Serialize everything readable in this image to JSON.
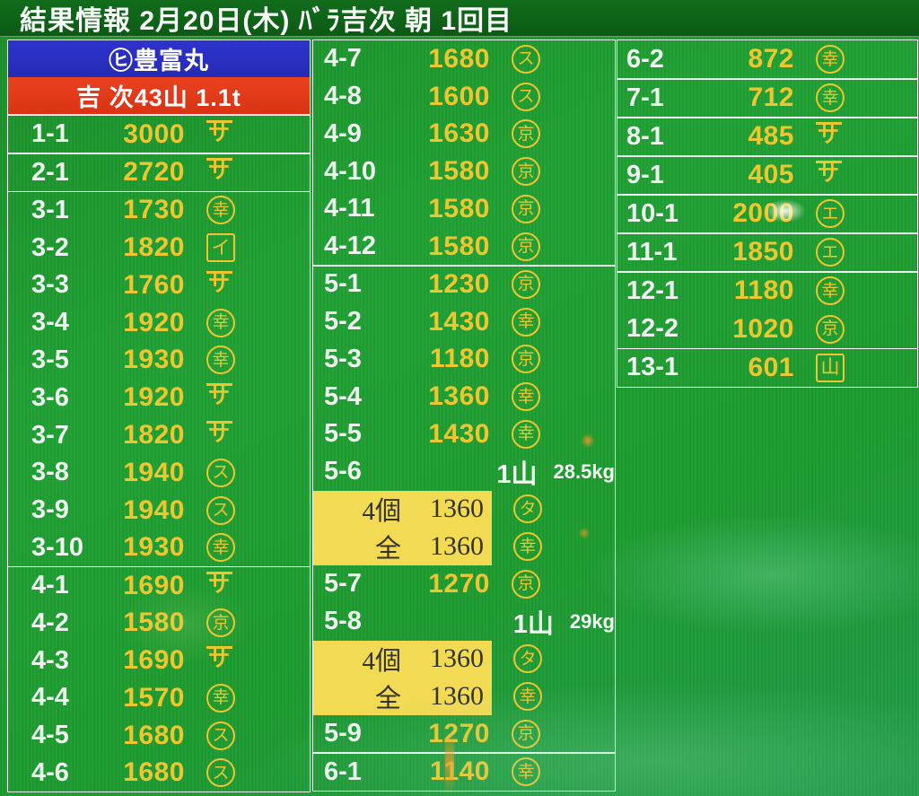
{
  "header": {
    "title": "結果情報  2月20日(木)  ﾊﾞﾗ吉次  朝  1回目"
  },
  "marks": {
    "sa": {
      "char": "サ",
      "shape": "overline",
      "label": "overlined-sa"
    },
    "kou": {
      "char": "幸",
      "shape": "circle",
      "label": "circled-kou"
    },
    "i": {
      "char": "イ",
      "shape": "square",
      "label": "squared-i"
    },
    "su": {
      "char": "ス",
      "shape": "circle",
      "label": "circled-su"
    },
    "kyo": {
      "char": "京",
      "shape": "circle",
      "label": "circled-kyo"
    },
    "e": {
      "char": "エ",
      "shape": "circle",
      "label": "circled-e"
    },
    "ta": {
      "char": "タ",
      "shape": "circle",
      "label": "circled-ta"
    },
    "yama": {
      "char": "山",
      "shape": "square",
      "label": "squared-yama"
    }
  },
  "left_column": {
    "boat_banner": "㋪豊富丸",
    "lot_banner": "吉 次43山 1.1t",
    "groups": [
      {
        "rows": [
          {
            "lot": "1-1",
            "price": "3000",
            "mark": "sa"
          }
        ]
      },
      {
        "rows": [
          {
            "lot": "2-1",
            "price": "2720",
            "mark": "sa"
          }
        ]
      },
      {
        "rows": [
          {
            "lot": "3-1",
            "price": "1730",
            "mark": "kou"
          },
          {
            "lot": "3-2",
            "price": "1820",
            "mark": "i"
          },
          {
            "lot": "3-3",
            "price": "1760",
            "mark": "sa"
          },
          {
            "lot": "3-4",
            "price": "1920",
            "mark": "kou"
          },
          {
            "lot": "3-5",
            "price": "1930",
            "mark": "kou"
          },
          {
            "lot": "3-6",
            "price": "1920",
            "mark": "sa"
          },
          {
            "lot": "3-7",
            "price": "1820",
            "mark": "sa"
          },
          {
            "lot": "3-8",
            "price": "1940",
            "mark": "su"
          },
          {
            "lot": "3-9",
            "price": "1940",
            "mark": "su"
          },
          {
            "lot": "3-10",
            "price": "1930",
            "mark": "kou"
          }
        ]
      },
      {
        "rows": [
          {
            "lot": "4-1",
            "price": "1690",
            "mark": "sa"
          },
          {
            "lot": "4-2",
            "price": "1580",
            "mark": "kyo"
          },
          {
            "lot": "4-3",
            "price": "1690",
            "mark": "sa"
          },
          {
            "lot": "4-4",
            "price": "1570",
            "mark": "kou"
          },
          {
            "lot": "4-5",
            "price": "1680",
            "mark": "su"
          },
          {
            "lot": "4-6",
            "price": "1680",
            "mark": "su"
          }
        ]
      }
    ]
  },
  "middle_column": {
    "groups": [
      {
        "rows": [
          {
            "lot": "4-7",
            "price": "1680",
            "mark": "su"
          },
          {
            "lot": "4-8",
            "price": "1600",
            "mark": "su"
          },
          {
            "lot": "4-9",
            "price": "1630",
            "mark": "kyo"
          },
          {
            "lot": "4-10",
            "price": "1580",
            "mark": "kyo"
          },
          {
            "lot": "4-11",
            "price": "1580",
            "mark": "kyo"
          },
          {
            "lot": "4-12",
            "price": "1580",
            "mark": "kyo"
          }
        ]
      },
      {
        "rows": [
          {
            "lot": "5-1",
            "price": "1230",
            "mark": "kyo"
          },
          {
            "lot": "5-2",
            "price": "1430",
            "mark": "kou"
          },
          {
            "lot": "5-3",
            "price": "1180",
            "mark": "kyo"
          },
          {
            "lot": "5-4",
            "price": "1360",
            "mark": "kou"
          },
          {
            "lot": "5-5",
            "price": "1430",
            "mark": "kou"
          },
          {
            "lot": "5-6",
            "type": "note",
            "note": "1山",
            "weight": "28.5kg"
          },
          {
            "type": "highlight",
            "label": "4個",
            "price": "1360",
            "mark": "ta"
          },
          {
            "type": "highlight",
            "label": "全",
            "price": "1360",
            "mark": "kou"
          },
          {
            "lot": "5-7",
            "price": "1270",
            "mark": "kyo"
          },
          {
            "lot": "5-8",
            "type": "note",
            "note": "1山",
            "weight": "29kg"
          },
          {
            "type": "highlight",
            "label": "4個",
            "price": "1360",
            "mark": "ta"
          },
          {
            "type": "highlight",
            "label": "全",
            "price": "1360",
            "mark": "kou"
          },
          {
            "lot": "5-9",
            "price": "1270",
            "mark": "kyo"
          }
        ]
      },
      {
        "rows": [
          {
            "lot": "6-1",
            "price": "1140",
            "mark": "kou"
          }
        ]
      }
    ]
  },
  "right_column": {
    "groups": [
      {
        "rows": [
          {
            "lot": "6-2",
            "price": "872",
            "mark": "kou"
          }
        ]
      },
      {
        "rows": [
          {
            "lot": "7-1",
            "price": "712",
            "mark": "kou"
          }
        ]
      },
      {
        "rows": [
          {
            "lot": "8-1",
            "price": "485",
            "mark": "sa"
          }
        ]
      },
      {
        "rows": [
          {
            "lot": "9-1",
            "price": "405",
            "mark": "sa"
          }
        ]
      },
      {
        "rows": [
          {
            "lot": "10-1",
            "price": "2000",
            "mark": "e"
          }
        ]
      },
      {
        "rows": [
          {
            "lot": "11-1",
            "price": "1850",
            "mark": "e"
          }
        ]
      },
      {
        "rows": [
          {
            "lot": "12-1",
            "price": "1180",
            "mark": "kou"
          },
          {
            "lot": "12-2",
            "price": "1020",
            "mark": "kyo"
          }
        ]
      },
      {
        "rows": [
          {
            "lot": "13-1",
            "price": "601",
            "mark": "yama"
          }
        ]
      }
    ]
  },
  "colors": {
    "background_green": "#1f9c30",
    "header_green": "#0f6518",
    "price_yellow": "#eec62f",
    "label_white": "#edf3ee",
    "banner_blue": "#2b2fc4",
    "banner_red": "#e43c1a",
    "highlight_yellow": "#f2da52",
    "highlight_text": "#34342a"
  }
}
